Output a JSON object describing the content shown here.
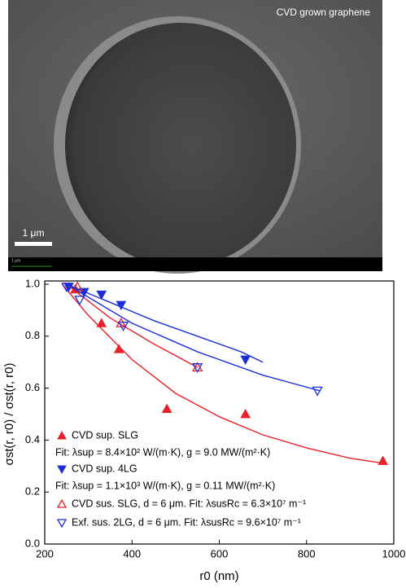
{
  "image": {
    "caption": "CVD grown graphene",
    "scale_bar": "1 μm",
    "strip_label": "1 μm"
  },
  "chart_data": {
    "type": "scatter",
    "xlabel": "r0 (nm)",
    "ylabel": "σst(r, r0) / σst(r, r0)",
    "xlim": [
      200,
      1000
    ],
    "ylim": [
      0,
      1
    ],
    "xticks": [
      200,
      400,
      600,
      800,
      1000
    ],
    "yticks": [
      {
        "value": 0,
        "label": "0.0"
      },
      0.2,
      0.4,
      0.6,
      0.8,
      {
        "value": 1,
        "label": "1.0"
      }
    ],
    "series": [
      {
        "name": "CVD sup. SLG",
        "note": "Fit: λsup = 8.4×10² W/(m·K), g = 9.0 MW/(m²·K)",
        "color": "#e8202a",
        "marker": "up-filled",
        "x": [
          270,
          330,
          370,
          480,
          660,
          975
        ],
        "values": [
          0.98,
          0.85,
          0.75,
          0.52,
          0.5,
          0.32
        ],
        "fit_x": [
          240,
          300,
          400,
          500,
          600,
          700,
          800,
          900,
          980
        ],
        "fit_y": [
          1.0,
          0.88,
          0.71,
          0.58,
          0.49,
          0.42,
          0.37,
          0.33,
          0.31
        ]
      },
      {
        "name": "CVD sup. 4LG",
        "note": "Fit: λsup = 1.1×10³ W/(m·K), g = 0.11 MW/(m²·K)",
        "color": "#1b2fd6",
        "marker": "down-filled",
        "x": [
          255,
          290,
          330,
          375,
          660
        ],
        "values": [
          0.99,
          0.97,
          0.96,
          0.92,
          0.71
        ],
        "fit_x": [
          250,
          350,
          450,
          550,
          650,
          700
        ],
        "fit_y": [
          1.0,
          0.93,
          0.86,
          0.8,
          0.74,
          0.7
        ]
      },
      {
        "name": "CVD sus. SLG, d = 6 μm. Fit: λsusRc = 6.3×10⁷ m⁻¹",
        "color": "#e8202a",
        "marker": "up-open",
        "x": [
          275,
          375,
          550
        ],
        "values": [
          0.99,
          0.85,
          0.68
        ],
        "fit_x": [
          250,
          350,
          450,
          550
        ],
        "fit_y": [
          1.0,
          0.87,
          0.77,
          0.68
        ]
      },
      {
        "name": "Exf. sus. 2LG, d = 6 μm. Fit: λsusRc = 9.6×10⁷ m⁻¹",
        "color": "#1b2fd6",
        "marker": "down-open",
        "x": [
          250,
          280,
          380,
          550,
          825
        ],
        "values": [
          0.99,
          0.94,
          0.84,
          0.68,
          0.59
        ],
        "fit_x": [
          250,
          400,
          550,
          700,
          830
        ],
        "fit_y": [
          1.0,
          0.85,
          0.74,
          0.65,
          0.59
        ]
      }
    ]
  }
}
